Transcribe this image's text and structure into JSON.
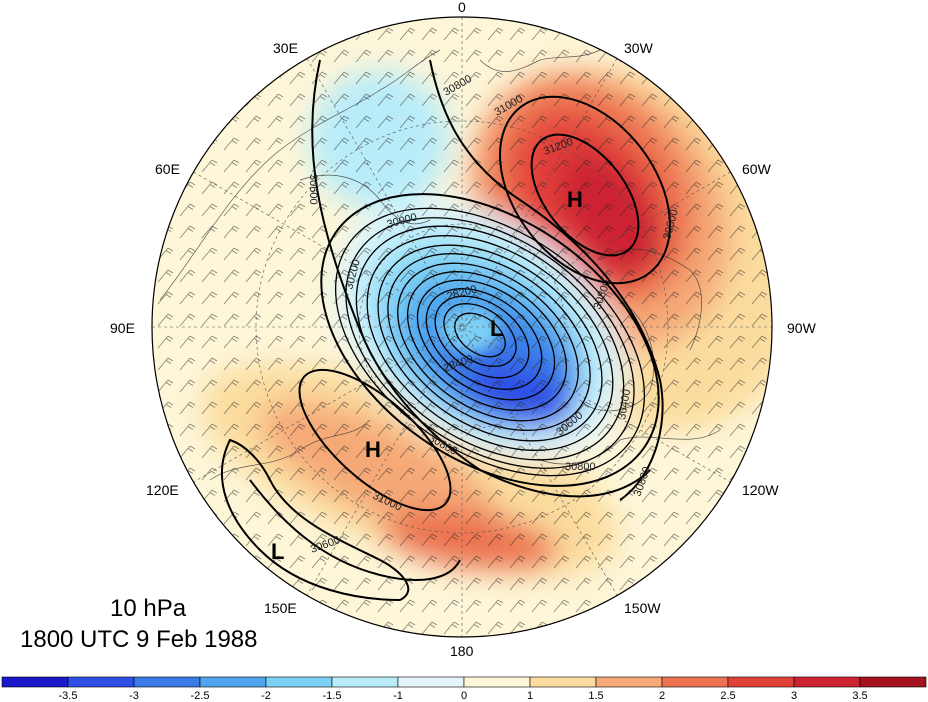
{
  "title": {
    "line1": "10 hPa",
    "line2": "1800 UTC 9 Feb 1988"
  },
  "longitude_labels": {
    "deg0": "0",
    "deg30w": "30W",
    "deg60w": "60W",
    "deg90w": "90W",
    "deg120w": "120W",
    "deg150w": "150W",
    "deg180": "180",
    "deg150e": "150E",
    "deg120e": "120E",
    "deg90e": "90E",
    "deg60e": "60E",
    "deg30e": "30E"
  },
  "centers": [
    {
      "label": "H",
      "region": "north-atlantic / greenland"
    },
    {
      "label": "L",
      "region": "pole / canadian arctic"
    },
    {
      "label": "H",
      "region": "north pacific / kamchatka"
    },
    {
      "label": "L",
      "region": "east asia / china"
    }
  ],
  "contour_labels": [
    "30800",
    "31000",
    "31200",
    "30600",
    "30000",
    "30200",
    "28200",
    "28400",
    "30400",
    "30600",
    "30800",
    "30800",
    "31000",
    "30800",
    "30600",
    "30600",
    "30800"
  ],
  "colorbar": {
    "ticks": [
      "-3.5",
      "-3",
      "-2.5",
      "-2",
      "-1.5",
      "-1",
      "0",
      "1",
      "1.5",
      "2",
      "2.5",
      "3",
      "3.5"
    ],
    "colors": [
      "#1a18c9",
      "#2f4ee6",
      "#3b7be8",
      "#4ea5ee",
      "#7dd0f5",
      "#b8ecf9",
      "#e4f6fb",
      "#fdf6d8",
      "#fbdc9e",
      "#f5a977",
      "#ec7250",
      "#e2413a",
      "#cc2331",
      "#a3121e"
    ]
  }
}
